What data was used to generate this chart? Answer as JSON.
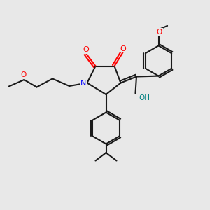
{
  "background_color": "#e8e8e8",
  "fig_width": 3.0,
  "fig_height": 3.0,
  "dpi": 100,
  "bond_color": "#1a1a1a",
  "bond_lw": 1.5,
  "atom_colors": {
    "O": "#ff0000",
    "N": "#0000ff",
    "OH": "#008080",
    "C": "#1a1a1a"
  },
  "font_size": 7.5
}
